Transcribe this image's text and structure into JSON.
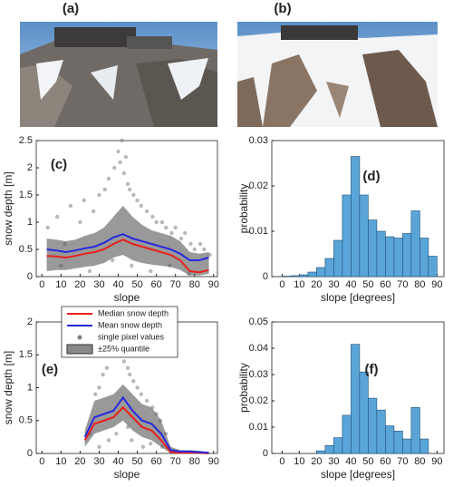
{
  "panels": [
    {
      "label": "(a)"
    },
    {
      "label": "(b)"
    }
  ],
  "chart_data": [
    {
      "type": "line",
      "panel_label": "(c)",
      "x_label": "slope",
      "y_label": "snow depth [m]",
      "xlim": [
        -3,
        92
      ],
      "xticks": [
        0,
        10,
        20,
        30,
        40,
        50,
        60,
        70,
        80,
        90
      ],
      "ylim": [
        0,
        2.5
      ],
      "yticks": [
        0,
        0.5,
        1,
        1.5,
        2,
        2.5
      ],
      "x": [
        2.5,
        7.5,
        12.5,
        17.5,
        22.5,
        27.5,
        32.5,
        37.5,
        42.5,
        47.5,
        52.5,
        57.5,
        62.5,
        67.5,
        72.5,
        77.5,
        82.5,
        87.5
      ],
      "scatter": {
        "color": "#808080",
        "x": [
          3,
          8,
          12,
          15,
          20,
          22,
          27,
          30,
          33,
          35,
          38,
          40,
          41,
          42,
          43,
          44,
          45,
          46,
          48,
          50,
          52,
          55,
          58,
          60,
          63,
          65,
          68,
          70,
          73,
          75,
          78,
          80,
          83,
          85,
          88,
          10,
          25,
          37,
          47,
          57,
          67,
          77
        ],
        "y": [
          0.9,
          1.1,
          0.6,
          1.3,
          1.0,
          1.4,
          1.2,
          1.5,
          1.6,
          1.8,
          2.0,
          2.3,
          2.1,
          2.5,
          1.9,
          2.2,
          1.7,
          1.6,
          1.5,
          1.4,
          1.3,
          1.2,
          1.1,
          1.0,
          1.0,
          0.9,
          0.8,
          0.9,
          0.7,
          0.8,
          0.6,
          0.5,
          0.6,
          0.5,
          0.4,
          0.2,
          0.1,
          0.3,
          0.2,
          0.1,
          0.2,
          0.05
        ]
      },
      "band": {
        "color": "#555555",
        "upper": [
          0.7,
          0.68,
          0.65,
          0.68,
          0.75,
          0.8,
          0.9,
          1.1,
          1.3,
          1.1,
          0.95,
          0.85,
          0.8,
          0.75,
          0.65,
          0.45,
          0.42,
          0.45
        ],
        "lower": [
          0.1,
          0.12,
          0.12,
          0.15,
          0.18,
          0.2,
          0.25,
          0.35,
          0.4,
          0.3,
          0.25,
          0.22,
          0.2,
          0.18,
          0.12,
          0.02,
          0.02,
          0.05
        ]
      },
      "series": [
        {
          "color": "#e8201c",
          "values": [
            0.38,
            0.37,
            0.35,
            0.38,
            0.42,
            0.45,
            0.5,
            0.6,
            0.68,
            0.6,
            0.55,
            0.5,
            0.45,
            0.4,
            0.3,
            0.1,
            0.08,
            0.12
          ]
        },
        {
          "color": "#2828e0",
          "values": [
            0.5,
            0.48,
            0.45,
            0.48,
            0.52,
            0.55,
            0.62,
            0.72,
            0.78,
            0.7,
            0.65,
            0.6,
            0.55,
            0.5,
            0.42,
            0.3,
            0.3,
            0.35
          ]
        }
      ]
    },
    {
      "type": "histogram",
      "panel_label": "(d)",
      "x_label": "slope [degrees]",
      "y_label": "probability",
      "color": "#5aa5d8",
      "xlim": [
        -6,
        94
      ],
      "xticks": [
        0,
        10,
        20,
        30,
        40,
        50,
        60,
        70,
        80,
        90
      ],
      "ylim": [
        0,
        0.03
      ],
      "yticks": [
        0,
        0.01,
        0.02,
        0.03
      ],
      "bins": [
        0,
        5,
        10,
        15,
        20,
        25,
        30,
        35,
        40,
        45,
        50,
        55,
        60,
        65,
        70,
        75,
        80,
        85,
        90
      ],
      "values": [
        0.0001,
        0.0002,
        0.0004,
        0.001,
        0.002,
        0.004,
        0.008,
        0.018,
        0.0265,
        0.018,
        0.0125,
        0.01,
        0.0088,
        0.0085,
        0.0095,
        0.0145,
        0.0085,
        0.0045
      ]
    },
    {
      "type": "line",
      "panel_label": "(e)",
      "x_label": "slope",
      "y_label": "snow depth [m]",
      "legend": "upper-left",
      "xlim": [
        -3,
        92
      ],
      "xticks": [
        0,
        10,
        20,
        30,
        40,
        50,
        60,
        70,
        80,
        90
      ],
      "ylim": [
        0,
        2
      ],
      "yticks": [
        0,
        0.5,
        1,
        1.5,
        2
      ],
      "x": [
        22.5,
        27.5,
        32.5,
        37.5,
        42.5,
        47.5,
        52.5,
        57.5,
        62.5,
        67.5,
        72.5,
        77.5,
        82.5,
        87.5
      ],
      "scatter": {
        "name": "single pixel values",
        "color": "#808080",
        "x": [
          25,
          28,
          30,
          32,
          34,
          36,
          38,
          40,
          41,
          42,
          43,
          44,
          45,
          46,
          48,
          50,
          52,
          55,
          58,
          60,
          62,
          65,
          35,
          39,
          47,
          53,
          57,
          63,
          30,
          45
        ],
        "y": [
          0.3,
          0.9,
          1.0,
          1.2,
          1.3,
          1.5,
          1.8,
          1.95,
          1.9,
          1.6,
          1.4,
          1.7,
          1.3,
          1.2,
          1.1,
          1.0,
          0.9,
          0.8,
          0.7,
          0.6,
          0.5,
          0.3,
          0.2,
          0.3,
          0.2,
          0.1,
          0.15,
          0.1,
          0.1,
          0.4
        ]
      },
      "band": {
        "name": "±25% quantile",
        "color": "#555555",
        "upper": [
          0.35,
          0.8,
          0.85,
          0.9,
          1.05,
          0.9,
          0.75,
          0.7,
          0.5,
          0.1,
          0.05,
          0.05,
          0.04,
          0.02
        ],
        "lower": [
          0.1,
          0.3,
          0.35,
          0.4,
          0.5,
          0.35,
          0.25,
          0.2,
          0.1,
          0,
          0,
          0,
          0,
          0
        ]
      },
      "series": [
        {
          "name": "Median snow depth",
          "color": "#e8201c",
          "values": [
            0.2,
            0.45,
            0.5,
            0.55,
            0.7,
            0.55,
            0.4,
            0.35,
            0.2,
            0.02,
            0.01,
            0.01,
            0.01,
            0
          ]
        },
        {
          "name": "Mean snow depth",
          "color": "#2828e0",
          "values": [
            0.25,
            0.55,
            0.6,
            0.65,
            0.85,
            0.65,
            0.5,
            0.45,
            0.3,
            0.05,
            0.03,
            0.03,
            0.02,
            0.01
          ]
        }
      ]
    },
    {
      "type": "histogram",
      "panel_label": "(f)",
      "x_label": "slope [degrees]",
      "y_label": "probability",
      "color": "#5aa5d8",
      "xlim": [
        -6,
        94
      ],
      "xticks": [
        0,
        10,
        20,
        30,
        40,
        50,
        60,
        70,
        80,
        90
      ],
      "ylim": [
        0,
        0.05
      ],
      "yticks": [
        0,
        0.01,
        0.02,
        0.03,
        0.04,
        0.05
      ],
      "bins": [
        20,
        25,
        30,
        35,
        40,
        45,
        50,
        55,
        60,
        65,
        70,
        75,
        80,
        85
      ],
      "values": [
        0.001,
        0.003,
        0.006,
        0.0145,
        0.0415,
        0.031,
        0.021,
        0.0165,
        0.0105,
        0.0085,
        0.0055,
        0.0175,
        0.0055
      ]
    }
  ]
}
